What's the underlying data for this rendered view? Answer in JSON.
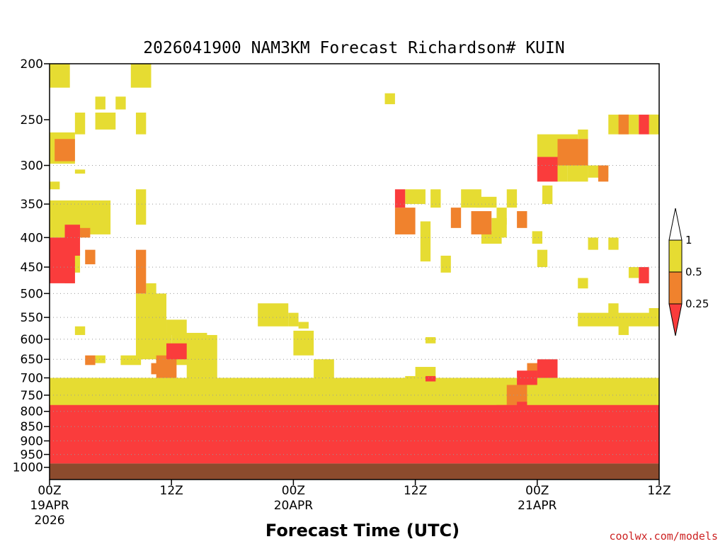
{
  "chart_data": {
    "type": "heatmap",
    "title": "2026041900 NAM3KM Forecast Richardson# KUIN",
    "xlabel": "Forecast Time (UTC)",
    "ylabel": "",
    "credit": "coolwx.com/models",
    "y_scale": "log-pressure",
    "ylim": [
      1000,
      200
    ],
    "xlim_hours": [
      0,
      60
    ],
    "grid": "dotted horizontal at 300-950 hPa",
    "y_ticks": [
      "200",
      "250",
      "300",
      "350",
      "400",
      "450",
      "500",
      "550",
      "600",
      "650",
      "700",
      "750",
      "800",
      "850",
      "900",
      "950",
      "1000"
    ],
    "x_ticks": [
      {
        "hour": 0,
        "label": "00Z",
        "sub": "19APR",
        "sub2": "2026"
      },
      {
        "hour": 12,
        "label": "12Z",
        "sub": "",
        "sub2": ""
      },
      {
        "hour": 24,
        "label": "00Z",
        "sub": "20APR",
        "sub2": ""
      },
      {
        "hour": 36,
        "label": "12Z",
        "sub": "",
        "sub2": ""
      },
      {
        "hour": 48,
        "label": "00Z",
        "sub": "21APR",
        "sub2": ""
      },
      {
        "hour": 60,
        "label": "12Z",
        "sub": "",
        "sub2": ""
      }
    ],
    "colorbar": {
      "levels": [
        "1",
        "0.5",
        "0.25"
      ],
      "bins": [
        {
          "range": "> 1",
          "color": "#ffffff"
        },
        {
          "range": "0.5 - 1",
          "color": "#e6dc32"
        },
        {
          "range": "0.25 - 0.5",
          "color": "#f0822d"
        },
        {
          "range": "< 0.25",
          "color": "#fa3c3c"
        }
      ]
    },
    "colors": {
      "c1": "#e6dc32",
      "c2": "#f0822d",
      "c3": "#fa3c3c",
      "ground": "#8c4b2d"
    },
    "surface_pressure": 985,
    "cells": [
      [
        0,
        2,
        200,
        220,
        1
      ],
      [
        8,
        10,
        200,
        220,
        1
      ],
      [
        4.5,
        5.5,
        228,
        240,
        1
      ],
      [
        6.5,
        7.5,
        228,
        240,
        1
      ],
      [
        2.5,
        3.5,
        243,
        265,
        1
      ],
      [
        4.5,
        6.5,
        243,
        260,
        1
      ],
      [
        8.5,
        9.5,
        243,
        265,
        1
      ],
      [
        0,
        2.5,
        263,
        298,
        1
      ],
      [
        0.5,
        2.5,
        270,
        295,
        2
      ],
      [
        2.5,
        3.5,
        305,
        310,
        1
      ],
      [
        0,
        1,
        320,
        330,
        1
      ],
      [
        8.5,
        9.5,
        330,
        380,
        1
      ],
      [
        0,
        6,
        345,
        395,
        1
      ],
      [
        0,
        2,
        365,
        400,
        1
      ],
      [
        1.5,
        3,
        380,
        430,
        3
      ],
      [
        3,
        4,
        385,
        400,
        2
      ],
      [
        0,
        2.5,
        400,
        480,
        3
      ],
      [
        1.5,
        2.5,
        440,
        480,
        2
      ],
      [
        3.5,
        4.5,
        420,
        445,
        2
      ],
      [
        2,
        3,
        420,
        460,
        1
      ],
      [
        8.5,
        9.5,
        420,
        500,
        2
      ],
      [
        9.5,
        10.5,
        480,
        530,
        1
      ],
      [
        8.5,
        11.5,
        500,
        650,
        1
      ],
      [
        10.5,
        11.5,
        600,
        680,
        1
      ],
      [
        11.5,
        12,
        585,
        620,
        1
      ],
      [
        11.5,
        13.5,
        555,
        590,
        1
      ],
      [
        12,
        15.5,
        585,
        665,
        1
      ],
      [
        13.5,
        16.5,
        590,
        700,
        1
      ],
      [
        10.5,
        12.5,
        640,
        700,
        2
      ],
      [
        11.5,
        13.5,
        610,
        650,
        3
      ],
      [
        2.5,
        3.5,
        570,
        590,
        1
      ],
      [
        3.5,
        4.5,
        640,
        665,
        2
      ],
      [
        4.5,
        5.5,
        640,
        660,
        1
      ],
      [
        7,
        9,
        640,
        665,
        1
      ],
      [
        10,
        11,
        660,
        690,
        2
      ],
      [
        20.5,
        23.5,
        520,
        570,
        1
      ],
      [
        23.5,
        24.5,
        540,
        570,
        1
      ],
      [
        24.5,
        25.5,
        560,
        575,
        1
      ],
      [
        24,
        26,
        580,
        640,
        1
      ],
      [
        26,
        28,
        650,
        700,
        1
      ],
      [
        33,
        34,
        225,
        235,
        1
      ],
      [
        34,
        35,
        330,
        355,
        3
      ],
      [
        35,
        37,
        330,
        350,
        1
      ],
      [
        34,
        36,
        355,
        395,
        2
      ],
      [
        37.5,
        38.5,
        330,
        355,
        1
      ],
      [
        36.5,
        37.5,
        375,
        440,
        1
      ],
      [
        38.5,
        39.5,
        430,
        460,
        1
      ],
      [
        40.5,
        42.5,
        330,
        355,
        1
      ],
      [
        42,
        44,
        340,
        355,
        1
      ],
      [
        39.5,
        40.5,
        355,
        385,
        2
      ],
      [
        41.5,
        43.5,
        360,
        395,
        2
      ],
      [
        44,
        45,
        355,
        380,
        1
      ],
      [
        42.5,
        44.5,
        390,
        410,
        1
      ],
      [
        43.5,
        45,
        370,
        400,
        1
      ],
      [
        45,
        46,
        330,
        355,
        1
      ],
      [
        46,
        47,
        360,
        385,
        2
      ],
      [
        47.5,
        48.5,
        390,
        410,
        1
      ],
      [
        48,
        49,
        420,
        450,
        1
      ],
      [
        48.5,
        49.5,
        325,
        350,
        1
      ],
      [
        48,
        52,
        265,
        290,
        1
      ],
      [
        48,
        50,
        290,
        320,
        3
      ],
      [
        50,
        53,
        270,
        300,
        2
      ],
      [
        51,
        53,
        300,
        320,
        1
      ],
      [
        52,
        53,
        260,
        270,
        1
      ],
      [
        53,
        55,
        300,
        315,
        1
      ],
      [
        54,
        55,
        300,
        320,
        2
      ],
      [
        50,
        51,
        300,
        320,
        1
      ],
      [
        55,
        57,
        245,
        265,
        1
      ],
      [
        56,
        57,
        245,
        265,
        2
      ],
      [
        57,
        58,
        245,
        265,
        1
      ],
      [
        58,
        59,
        245,
        265,
        3
      ],
      [
        59,
        60,
        245,
        265,
        1
      ],
      [
        59,
        60,
        245,
        265,
        1
      ],
      [
        53,
        54,
        400,
        420,
        1
      ],
      [
        55,
        56,
        400,
        420,
        1
      ],
      [
        52,
        53,
        470,
        490,
        1
      ],
      [
        58,
        59,
        450,
        480,
        3
      ],
      [
        57,
        58,
        450,
        470,
        1
      ],
      [
        52,
        60,
        540,
        570,
        1
      ],
      [
        55,
        56,
        520,
        560,
        1
      ],
      [
        56,
        57,
        560,
        590,
        1
      ],
      [
        59,
        60,
        530,
        550,
        1
      ],
      [
        37,
        38,
        595,
        610,
        1
      ],
      [
        36,
        38,
        670,
        720,
        1
      ],
      [
        35,
        36,
        695,
        720,
        1
      ],
      [
        37,
        38,
        695,
        710,
        3
      ],
      [
        36,
        38,
        800,
        850,
        1
      ],
      [
        37.5,
        39.5,
        760,
        830,
        1
      ],
      [
        46,
        48,
        680,
        720,
        3
      ],
      [
        47,
        49,
        660,
        700,
        2
      ],
      [
        48,
        50,
        650,
        700,
        3
      ],
      [
        45,
        47,
        720,
        780,
        2
      ],
      [
        46,
        47,
        770,
        800,
        3
      ],
      [
        44,
        46,
        780,
        830,
        2
      ],
      [
        0,
        60,
        700,
        800,
        1
      ],
      [
        0,
        60,
        780,
        985,
        3
      ]
    ]
  }
}
